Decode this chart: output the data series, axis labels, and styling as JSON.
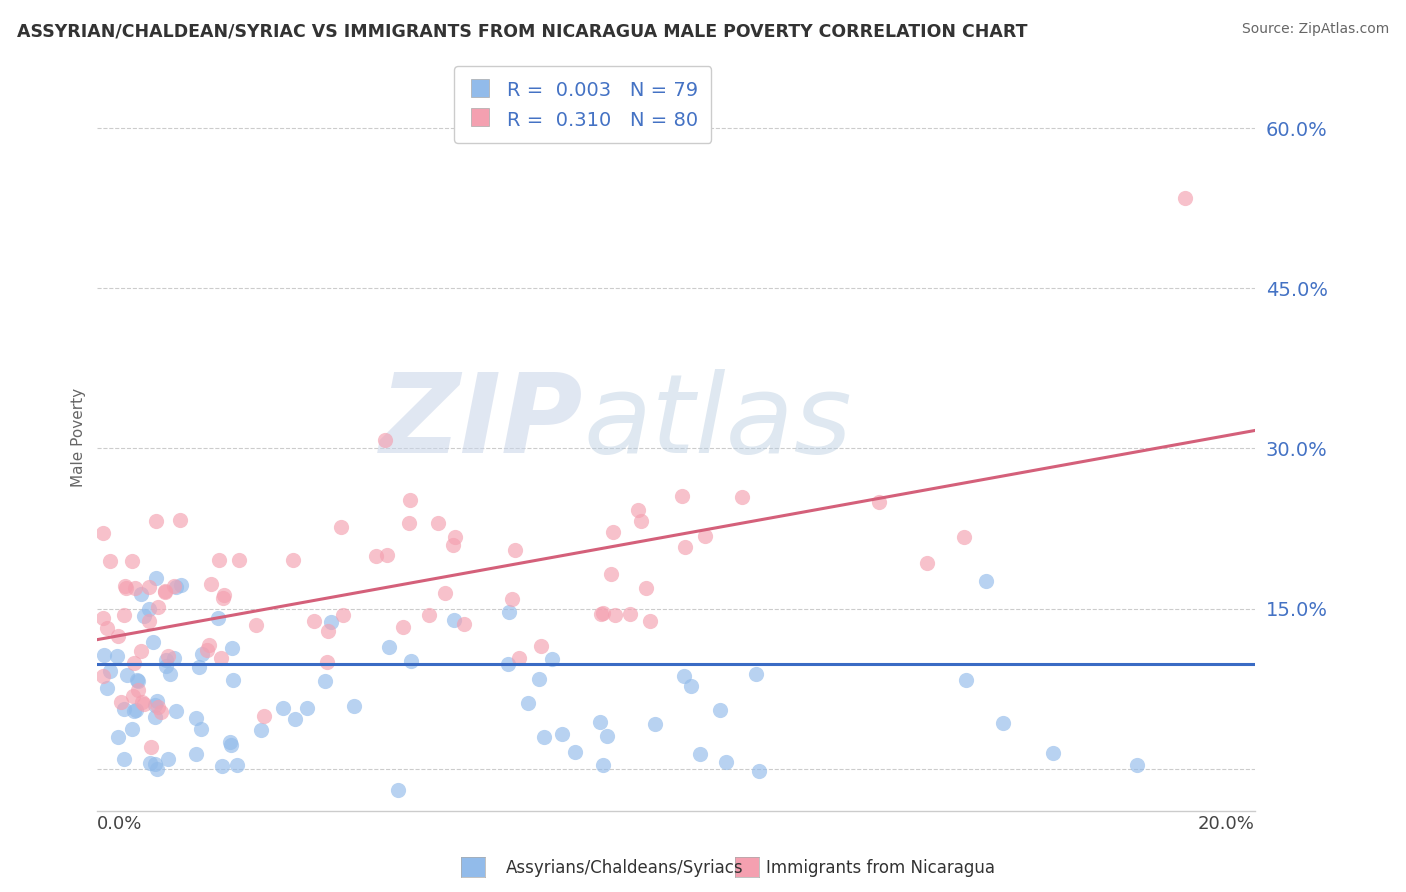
{
  "title": "ASSYRIAN/CHALDEAN/SYRIAC VS IMMIGRANTS FROM NICARAGUA MALE POVERTY CORRELATION CHART",
  "source": "Source: ZipAtlas.com",
  "ylabel": "Male Poverty",
  "y_ticks": [
    "15.0%",
    "30.0%",
    "45.0%",
    "60.0%"
  ],
  "y_tick_vals": [
    0.15,
    0.3,
    0.45,
    0.6
  ],
  "xmin": 0.0,
  "xmax": 0.2,
  "ymin": -0.04,
  "ymax": 0.66,
  "legend_blue_R": "0.003",
  "legend_blue_N": "79",
  "legend_pink_R": "0.310",
  "legend_pink_N": "80",
  "color_blue": "#92BBEA",
  "color_pink": "#F4A0B0",
  "color_line_blue": "#3A6BC4",
  "color_line_pink": "#D4607A",
  "watermark_zip": "ZIP",
  "watermark_atlas": "atlas",
  "legend_label_blue": "Assyrians/Chaldeans/Syriacs",
  "legend_label_pink": "Immigrants from Nicaragua",
  "title_color": "#333333",
  "source_color": "#666666",
  "ytick_color": "#4472C4",
  "grid_color": "#cccccc",
  "ylabel_color": "#666666",
  "spine_color": "#cccccc"
}
